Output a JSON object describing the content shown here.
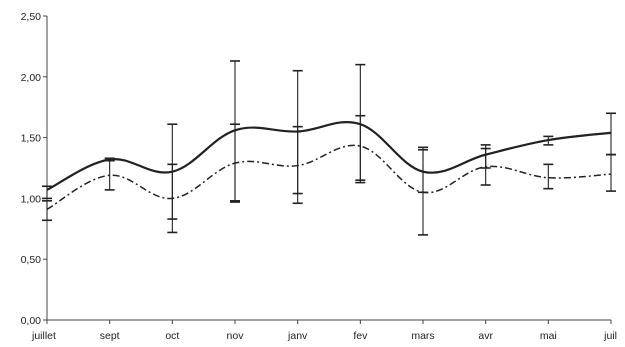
{
  "chart_data": {
    "type": "line",
    "categories": [
      "juillet",
      "sept",
      "oct",
      "nov",
      "janv",
      "fev",
      "mars",
      "avr",
      "mai",
      "juil"
    ],
    "ylim": [
      0,
      2.5
    ],
    "yticks": [
      "0,00",
      "0,50",
      "1,00",
      "1,50",
      "2,00",
      "2,50"
    ],
    "ytick_values": [
      0,
      0.5,
      1.0,
      1.5,
      2.0,
      2.5
    ],
    "grid": false,
    "legend": "none",
    "series": [
      {
        "style": "solid",
        "color": "#222222",
        "values": [
          1.07,
          1.32,
          1.22,
          1.56,
          1.55,
          1.61,
          1.22,
          1.36,
          1.48,
          1.54
        ],
        "error_low": [
          1.0,
          1.31,
          0.83,
          0.98,
          1.04,
          1.13,
          1.05,
          1.25,
          1.44,
          1.36
        ],
        "error_high": [
          1.1,
          1.33,
          1.61,
          2.13,
          2.05,
          2.1,
          1.42,
          1.44,
          1.51,
          1.7
        ]
      },
      {
        "style": "dash-dot",
        "color": "#222222",
        "values": [
          0.91,
          1.19,
          1.0,
          1.29,
          1.27,
          1.43,
          1.05,
          1.26,
          1.17,
          1.2
        ],
        "error_low": [
          0.82,
          1.07,
          0.72,
          0.97,
          0.96,
          1.15,
          0.7,
          1.11,
          1.08,
          1.06
        ],
        "error_high": [
          0.98,
          1.31,
          1.28,
          1.61,
          1.59,
          1.68,
          1.4,
          1.41,
          1.28,
          1.36
        ]
      }
    ]
  }
}
